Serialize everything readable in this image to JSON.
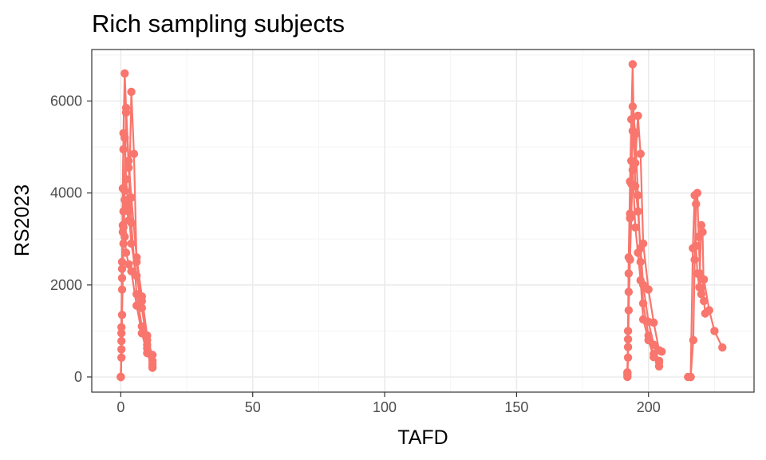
{
  "chart_data": {
    "type": "line",
    "title": "Rich sampling subjects",
    "xlabel": "TAFD",
    "ylabel": "RS2023",
    "xlim": [
      -11,
      240
    ],
    "ylim": [
      -330,
      7120
    ],
    "x_ticks": [
      0,
      50,
      100,
      150,
      200
    ],
    "x_tick_labels": [
      "0",
      "50",
      "100",
      "150",
      "200"
    ],
    "y_ticks": [
      0,
      2000,
      4000,
      6000
    ],
    "y_tick_labels": [
      "0",
      "2000",
      "4000",
      "6000"
    ],
    "grid": true,
    "legend": "none",
    "series_color": "#F8766D",
    "series": [
      {
        "x": [
          0,
          0.25,
          0.5,
          0.75,
          1,
          1.5,
          2,
          3,
          4,
          6,
          8,
          10,
          12
        ],
        "y": [
          0,
          950,
          2500,
          4100,
          5300,
          6600,
          5850,
          4700,
          3900,
          2600,
          1750,
          900,
          220
        ]
      },
      {
        "x": [
          0,
          0.25,
          0.5,
          0.75,
          1,
          1.5,
          2,
          3,
          4,
          6,
          8,
          10,
          12
        ],
        "y": [
          0,
          600,
          1900,
          3300,
          4950,
          5200,
          4300,
          3600,
          2900,
          2200,
          1500,
          700,
          350
        ]
      },
      {
        "x": [
          0,
          0.25,
          0.5,
          1,
          1.5,
          2,
          3,
          4,
          5,
          6,
          8,
          10,
          12
        ],
        "y": [
          0,
          420,
          1350,
          2900,
          3850,
          3700,
          3400,
          6200,
          4850,
          2500,
          1650,
          800,
          480
        ]
      },
      {
        "x": [
          0,
          0.25,
          0.5,
          0.75,
          1,
          1.5,
          2,
          3,
          4,
          6,
          8,
          10,
          12
        ],
        "y": [
          0,
          780,
          2150,
          3150,
          3600,
          4050,
          5750,
          4550,
          3350,
          1800,
          1100,
          620,
          280
        ]
      },
      {
        "x": [
          0,
          0.25,
          0.5,
          1,
          1.5,
          2,
          3,
          4,
          6,
          8,
          10,
          12
        ],
        "y": [
          0,
          1080,
          2350,
          3250,
          3050,
          2700,
          2450,
          2300,
          1550,
          950,
          520,
          200
        ]
      },
      {
        "x": [
          192,
          192.25,
          192.5,
          193,
          193.5,
          194,
          194.5,
          195,
          196,
          197,
          198,
          200,
          202,
          204
        ],
        "y": [
          100,
          1000,
          2600,
          4250,
          5600,
          6800,
          5300,
          4150,
          3600,
          2800,
          2000,
          1200,
          700,
          320
        ]
      },
      {
        "x": [
          192,
          192.25,
          192.5,
          193,
          193.5,
          194,
          195,
          196,
          197,
          198,
          200,
          202,
          204
        ],
        "y": [
          30,
          650,
          1850,
          3550,
          4700,
          5880,
          5280,
          3950,
          2500,
          1600,
          900,
          500,
          230
        ]
      },
      {
        "x": [
          192,
          192.25,
          192.5,
          193,
          193.5,
          194,
          195,
          196,
          197,
          198,
          200,
          202,
          204,
          205
        ],
        "y": [
          80,
          820,
          2250,
          3450,
          4200,
          5350,
          4650,
          5680,
          4850,
          2900,
          1900,
          1180,
          580,
          550
        ]
      },
      {
        "x": [
          192,
          192.25,
          192.5,
          193,
          193.5,
          194,
          195,
          196,
          197,
          198,
          200,
          202,
          204
        ],
        "y": [
          0,
          420,
          1450,
          2550,
          3500,
          4500,
          3250,
          2700,
          2100,
          1250,
          800,
          430,
          350
        ]
      },
      {
        "x": [
          216,
          217,
          217.5,
          218,
          218.5,
          219,
          219.5,
          220,
          221,
          223,
          225,
          228
        ],
        "y": [
          0,
          800,
          2550,
          3760,
          4000,
          3050,
          2250,
          1800,
          2120,
          1450,
          1000,
          640
        ]
      },
      {
        "x": [
          215,
          216,
          216.8,
          217.5,
          218,
          218.5,
          219.3,
          220,
          220.5,
          221,
          221.5
        ],
        "y": [
          0,
          0,
          2800,
          3950,
          2850,
          2250,
          1950,
          3300,
          3150,
          1650,
          1380
        ]
      }
    ]
  }
}
